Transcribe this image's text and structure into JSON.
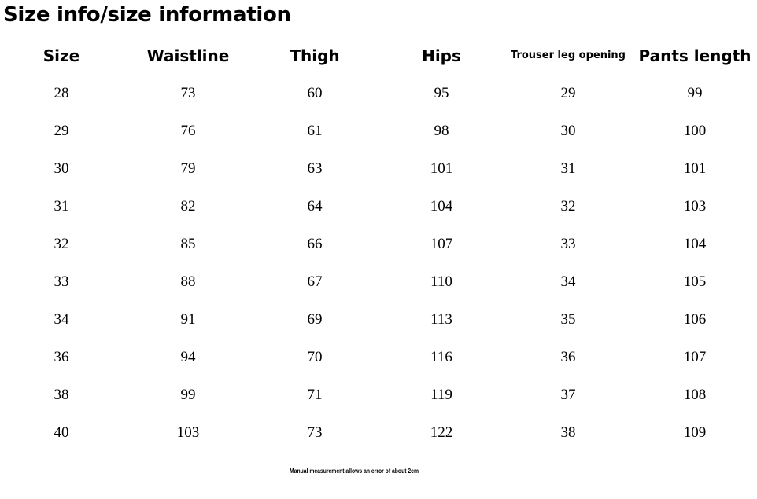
{
  "title": "Size info/size information",
  "columns": [
    "Size",
    "Waistline",
    "Thigh",
    "Hips",
    "Trouser leg opening",
    "Pants length"
  ],
  "rows": [
    [
      "28",
      "73",
      "60",
      "95",
      "29",
      "99"
    ],
    [
      "29",
      "76",
      "61",
      "98",
      "30",
      "100"
    ],
    [
      "30",
      "79",
      "63",
      "101",
      "31",
      "101"
    ],
    [
      "31",
      "82",
      "64",
      "104",
      "32",
      "103"
    ],
    [
      "32",
      "85",
      "66",
      "107",
      "33",
      "104"
    ],
    [
      "33",
      "88",
      "67",
      "110",
      "34",
      "105"
    ],
    [
      "34",
      "91",
      "69",
      "113",
      "35",
      "106"
    ],
    [
      "36",
      "94",
      "70",
      "116",
      "36",
      "107"
    ],
    [
      "38",
      "99",
      "71",
      "119",
      "37",
      "108"
    ],
    [
      "40",
      "103",
      "73",
      "122",
      "38",
      "109"
    ]
  ],
  "note": "Manual measurement allows an error of about 2cm"
}
